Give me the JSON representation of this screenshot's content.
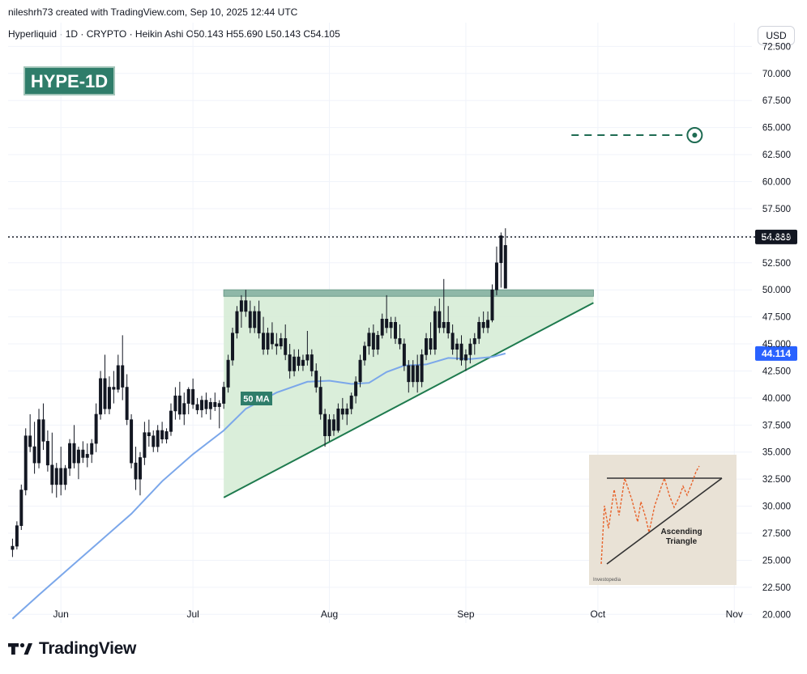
{
  "header": {
    "attribution": "nileshrh73 created with TradingView.com, Sep 10, 2025 12:44 UTC",
    "symbol_info": "Hyperliquid · 1D · CRYPTO · Heikin Ashi O50.143 H55.690 L50.143 C54.105",
    "currency_button": "USD"
  },
  "footer": {
    "brand": "TradingView"
  },
  "colors": {
    "bullish": "#131722",
    "bearish": "#131722",
    "ma_line": "#7ba7ea",
    "triangle_fill": "#d6ecd6",
    "triangle_line": "#1e7a4e",
    "resistance_band": "#8fb8a8",
    "target_line": "#1e6b52",
    "tag_bg": "#2f7d6a",
    "ma_price_badge": "#2962ff"
  },
  "chart_data": {
    "type": "candlestick",
    "title": "HYPE-1D",
    "annotation_ma_label": "50 MA",
    "current_price_label": "54.889",
    "ma_price_label": "44.114",
    "current_price": 54.889,
    "ma_price": 44.114,
    "target_price": 64.3,
    "resistance_zone": [
      49.4,
      50.0
    ],
    "x_ticks": [
      "Jun",
      "Jul",
      "Aug",
      "Sep",
      "Oct",
      "Nov"
    ],
    "y_ticks": [
      "20.000",
      "22.500",
      "25.000",
      "27.500",
      "30.000",
      "32.500",
      "35.000",
      "37.500",
      "40.000",
      "42.500",
      "45.000",
      "47.500",
      "50.000",
      "52.500",
      "55.000",
      "57.500",
      "60.000",
      "62.500",
      "65.000",
      "67.500",
      "70.000",
      "72.500"
    ],
    "ylim": [
      19.2,
      73.2
    ],
    "x_range": [
      "2025-05-20",
      "2025-11-05"
    ],
    "candles": [
      {
        "date": "2025-05-21",
        "o": 26.0,
        "h": 27.0,
        "l": 25.3,
        "c": 26.3
      },
      {
        "date": "2025-05-22",
        "o": 26.3,
        "h": 28.6,
        "l": 26.0,
        "c": 28.2
      },
      {
        "date": "2025-05-23",
        "o": 28.2,
        "h": 32.0,
        "l": 27.8,
        "c": 31.5
      },
      {
        "date": "2025-05-24",
        "o": 31.5,
        "h": 37.2,
        "l": 31.0,
        "c": 36.5
      },
      {
        "date": "2025-05-25",
        "o": 36.5,
        "h": 38.5,
        "l": 35.0,
        "c": 35.5
      },
      {
        "date": "2025-05-26",
        "o": 35.5,
        "h": 37.8,
        "l": 33.0,
        "c": 34.0
      },
      {
        "date": "2025-05-27",
        "o": 34.0,
        "h": 39.0,
        "l": 33.5,
        "c": 38.0
      },
      {
        "date": "2025-05-28",
        "o": 38.0,
        "h": 39.5,
        "l": 35.2,
        "c": 36.0
      },
      {
        "date": "2025-05-29",
        "o": 36.0,
        "h": 37.0,
        "l": 33.2,
        "c": 33.8
      },
      {
        "date": "2025-05-30",
        "o": 33.8,
        "h": 36.8,
        "l": 31.2,
        "c": 32.0
      },
      {
        "date": "2025-05-31",
        "o": 32.0,
        "h": 34.0,
        "l": 30.8,
        "c": 33.5
      },
      {
        "date": "2025-06-01",
        "o": 33.5,
        "h": 35.5,
        "l": 31.0,
        "c": 32.0
      },
      {
        "date": "2025-06-02",
        "o": 32.0,
        "h": 33.8,
        "l": 31.5,
        "c": 33.5
      },
      {
        "date": "2025-06-03",
        "o": 33.5,
        "h": 36.2,
        "l": 32.8,
        "c": 35.8
      },
      {
        "date": "2025-06-04",
        "o": 35.8,
        "h": 37.5,
        "l": 33.5,
        "c": 34.0
      },
      {
        "date": "2025-06-05",
        "o": 34.0,
        "h": 35.5,
        "l": 32.5,
        "c": 35.2
      },
      {
        "date": "2025-06-06",
        "o": 35.2,
        "h": 36.0,
        "l": 34.0,
        "c": 34.5
      },
      {
        "date": "2025-06-07",
        "o": 34.5,
        "h": 35.8,
        "l": 33.6,
        "c": 34.8
      },
      {
        "date": "2025-06-08",
        "o": 34.8,
        "h": 36.2,
        "l": 34.0,
        "c": 35.8
      },
      {
        "date": "2025-06-09",
        "o": 35.8,
        "h": 39.5,
        "l": 35.0,
        "c": 38.5
      },
      {
        "date": "2025-06-10",
        "o": 38.5,
        "h": 42.5,
        "l": 38.0,
        "c": 41.8
      },
      {
        "date": "2025-06-11",
        "o": 41.8,
        "h": 44.0,
        "l": 38.5,
        "c": 39.0
      },
      {
        "date": "2025-06-12",
        "o": 39.0,
        "h": 42.0,
        "l": 38.5,
        "c": 41.0
      },
      {
        "date": "2025-06-13",
        "o": 41.0,
        "h": 42.5,
        "l": 39.5,
        "c": 40.8
      },
      {
        "date": "2025-06-14",
        "o": 40.8,
        "h": 44.0,
        "l": 40.5,
        "c": 43.0
      },
      {
        "date": "2025-06-15",
        "o": 43.0,
        "h": 45.8,
        "l": 39.8,
        "c": 41.0
      },
      {
        "date": "2025-06-16",
        "o": 41.0,
        "h": 42.2,
        "l": 37.5,
        "c": 38.0
      },
      {
        "date": "2025-06-17",
        "o": 38.0,
        "h": 38.5,
        "l": 33.5,
        "c": 34.0
      },
      {
        "date": "2025-06-18",
        "o": 34.0,
        "h": 35.5,
        "l": 31.5,
        "c": 32.5
      },
      {
        "date": "2025-06-19",
        "o": 32.5,
        "h": 35.0,
        "l": 31.0,
        "c": 34.5
      },
      {
        "date": "2025-06-20",
        "o": 34.5,
        "h": 37.8,
        "l": 33.8,
        "c": 36.8
      },
      {
        "date": "2025-06-21",
        "o": 36.8,
        "h": 38.0,
        "l": 35.5,
        "c": 36.5
      },
      {
        "date": "2025-06-22",
        "o": 36.5,
        "h": 37.0,
        "l": 35.0,
        "c": 35.5
      },
      {
        "date": "2025-06-23",
        "o": 35.5,
        "h": 37.5,
        "l": 35.0,
        "c": 37.0
      },
      {
        "date": "2025-06-24",
        "o": 37.0,
        "h": 37.8,
        "l": 35.8,
        "c": 36.2
      },
      {
        "date": "2025-06-25",
        "o": 36.2,
        "h": 37.2,
        "l": 35.8,
        "c": 36.9
      },
      {
        "date": "2025-06-26",
        "o": 36.9,
        "h": 39.5,
        "l": 36.5,
        "c": 38.8
      },
      {
        "date": "2025-06-27",
        "o": 38.8,
        "h": 41.0,
        "l": 38.0,
        "c": 40.2
      },
      {
        "date": "2025-06-28",
        "o": 40.2,
        "h": 41.5,
        "l": 38.0,
        "c": 38.5
      },
      {
        "date": "2025-06-29",
        "o": 38.5,
        "h": 40.5,
        "l": 37.5,
        "c": 39.5
      },
      {
        "date": "2025-06-30",
        "o": 39.5,
        "h": 41.0,
        "l": 38.5,
        "c": 40.8
      },
      {
        "date": "2025-07-01",
        "o": 40.8,
        "h": 41.8,
        "l": 39.0,
        "c": 39.4
      },
      {
        "date": "2025-07-02",
        "o": 39.4,
        "h": 40.0,
        "l": 38.5,
        "c": 38.9
      },
      {
        "date": "2025-07-03",
        "o": 38.9,
        "h": 40.2,
        "l": 38.2,
        "c": 39.8
      },
      {
        "date": "2025-07-04",
        "o": 39.8,
        "h": 40.5,
        "l": 38.5,
        "c": 39.0
      },
      {
        "date": "2025-07-05",
        "o": 39.0,
        "h": 40.0,
        "l": 38.0,
        "c": 39.6
      },
      {
        "date": "2025-07-06",
        "o": 39.6,
        "h": 40.5,
        "l": 38.8,
        "c": 39.2
      },
      {
        "date": "2025-07-07",
        "o": 39.2,
        "h": 39.8,
        "l": 37.2,
        "c": 39.5
      },
      {
        "date": "2025-07-08",
        "o": 39.5,
        "h": 41.5,
        "l": 39.0,
        "c": 41.0
      },
      {
        "date": "2025-07-09",
        "o": 41.0,
        "h": 44.0,
        "l": 40.5,
        "c": 43.5
      },
      {
        "date": "2025-07-10",
        "o": 43.5,
        "h": 46.5,
        "l": 43.0,
        "c": 46.0
      },
      {
        "date": "2025-07-11",
        "o": 46.0,
        "h": 48.5,
        "l": 45.5,
        "c": 48.0
      },
      {
        "date": "2025-07-12",
        "o": 48.0,
        "h": 49.5,
        "l": 46.5,
        "c": 49.0
      },
      {
        "date": "2025-07-13",
        "o": 49.0,
        "h": 50.0,
        "l": 47.5,
        "c": 48.0
      },
      {
        "date": "2025-07-14",
        "o": 48.0,
        "h": 49.0,
        "l": 46.0,
        "c": 46.5
      },
      {
        "date": "2025-07-15",
        "o": 46.5,
        "h": 48.5,
        "l": 46.0,
        "c": 48.0
      },
      {
        "date": "2025-07-16",
        "o": 48.0,
        "h": 49.0,
        "l": 45.5,
        "c": 46.0
      },
      {
        "date": "2025-07-17",
        "o": 46.0,
        "h": 47.5,
        "l": 44.0,
        "c": 44.5
      },
      {
        "date": "2025-07-18",
        "o": 44.5,
        "h": 46.5,
        "l": 44.0,
        "c": 46.0
      },
      {
        "date": "2025-07-19",
        "o": 46.0,
        "h": 47.0,
        "l": 44.5,
        "c": 45.0
      },
      {
        "date": "2025-07-20",
        "o": 45.0,
        "h": 46.0,
        "l": 44.0,
        "c": 44.8
      },
      {
        "date": "2025-07-21",
        "o": 44.8,
        "h": 46.0,
        "l": 44.5,
        "c": 45.5
      },
      {
        "date": "2025-07-22",
        "o": 45.5,
        "h": 46.8,
        "l": 43.5,
        "c": 44.0
      },
      {
        "date": "2025-07-23",
        "o": 44.0,
        "h": 45.0,
        "l": 41.8,
        "c": 42.5
      },
      {
        "date": "2025-07-24",
        "o": 42.5,
        "h": 44.5,
        "l": 42.0,
        "c": 43.8
      },
      {
        "date": "2025-07-25",
        "o": 43.8,
        "h": 44.5,
        "l": 42.5,
        "c": 43.0
      },
      {
        "date": "2025-07-26",
        "o": 43.0,
        "h": 44.0,
        "l": 42.5,
        "c": 43.5
      },
      {
        "date": "2025-07-27",
        "o": 43.5,
        "h": 46.2,
        "l": 43.0,
        "c": 44.0
      },
      {
        "date": "2025-07-28",
        "o": 44.0,
        "h": 44.5,
        "l": 42.0,
        "c": 42.5
      },
      {
        "date": "2025-07-29",
        "o": 42.5,
        "h": 43.2,
        "l": 40.5,
        "c": 41.0
      },
      {
        "date": "2025-07-30",
        "o": 41.0,
        "h": 42.0,
        "l": 38.0,
        "c": 38.5
      },
      {
        "date": "2025-07-31",
        "o": 38.5,
        "h": 39.0,
        "l": 35.5,
        "c": 36.5
      },
      {
        "date": "2025-08-01",
        "o": 36.5,
        "h": 38.5,
        "l": 36.0,
        "c": 38.0
      },
      {
        "date": "2025-08-02",
        "o": 38.0,
        "h": 38.5,
        "l": 36.5,
        "c": 37.0
      },
      {
        "date": "2025-08-03",
        "o": 37.0,
        "h": 39.5,
        "l": 36.8,
        "c": 39.0
      },
      {
        "date": "2025-08-04",
        "o": 39.0,
        "h": 40.0,
        "l": 38.0,
        "c": 38.5
      },
      {
        "date": "2025-08-05",
        "o": 38.5,
        "h": 39.5,
        "l": 37.5,
        "c": 39.0
      },
      {
        "date": "2025-08-06",
        "o": 39.0,
        "h": 40.5,
        "l": 38.5,
        "c": 40.2
      },
      {
        "date": "2025-08-07",
        "o": 40.2,
        "h": 42.0,
        "l": 39.5,
        "c": 41.5
      },
      {
        "date": "2025-08-08",
        "o": 41.5,
        "h": 44.0,
        "l": 41.0,
        "c": 43.5
      },
      {
        "date": "2025-08-09",
        "o": 43.5,
        "h": 45.2,
        "l": 43.0,
        "c": 44.8
      },
      {
        "date": "2025-08-10",
        "o": 44.8,
        "h": 46.5,
        "l": 44.0,
        "c": 46.0
      },
      {
        "date": "2025-08-11",
        "o": 46.0,
        "h": 46.8,
        "l": 43.8,
        "c": 44.5
      },
      {
        "date": "2025-08-12",
        "o": 44.5,
        "h": 46.2,
        "l": 44.0,
        "c": 45.8
      },
      {
        "date": "2025-08-13",
        "o": 45.8,
        "h": 47.8,
        "l": 45.5,
        "c": 47.3
      },
      {
        "date": "2025-08-14",
        "o": 47.3,
        "h": 49.5,
        "l": 46.0,
        "c": 46.5
      },
      {
        "date": "2025-08-15",
        "o": 46.5,
        "h": 47.5,
        "l": 45.5,
        "c": 47.0
      },
      {
        "date": "2025-08-16",
        "o": 47.0,
        "h": 47.5,
        "l": 45.0,
        "c": 45.5
      },
      {
        "date": "2025-08-17",
        "o": 45.5,
        "h": 46.8,
        "l": 44.5,
        "c": 45.0
      },
      {
        "date": "2025-08-18",
        "o": 45.0,
        "h": 45.5,
        "l": 42.5,
        "c": 43.0
      },
      {
        "date": "2025-08-19",
        "o": 43.0,
        "h": 43.5,
        "l": 40.5,
        "c": 41.5
      },
      {
        "date": "2025-08-20",
        "o": 41.5,
        "h": 43.5,
        "l": 41.0,
        "c": 43.0
      },
      {
        "date": "2025-08-21",
        "o": 43.0,
        "h": 44.0,
        "l": 40.5,
        "c": 41.5
      },
      {
        "date": "2025-08-22",
        "o": 41.5,
        "h": 44.5,
        "l": 41.0,
        "c": 44.0
      },
      {
        "date": "2025-08-23",
        "o": 44.0,
        "h": 46.0,
        "l": 43.5,
        "c": 45.5
      },
      {
        "date": "2025-08-24",
        "o": 45.5,
        "h": 47.0,
        "l": 44.0,
        "c": 44.5
      },
      {
        "date": "2025-08-25",
        "o": 44.5,
        "h": 48.5,
        "l": 44.0,
        "c": 48.0
      },
      {
        "date": "2025-08-26",
        "o": 48.0,
        "h": 49.2,
        "l": 46.0,
        "c": 46.5
      },
      {
        "date": "2025-08-27",
        "o": 46.5,
        "h": 51.0,
        "l": 46.0,
        "c": 47.0
      },
      {
        "date": "2025-08-28",
        "o": 47.0,
        "h": 48.5,
        "l": 45.5,
        "c": 46.0
      },
      {
        "date": "2025-08-29",
        "o": 46.0,
        "h": 46.8,
        "l": 44.0,
        "c": 44.5
      },
      {
        "date": "2025-08-30",
        "o": 44.5,
        "h": 45.5,
        "l": 43.5,
        "c": 45.0
      },
      {
        "date": "2025-08-31",
        "o": 45.0,
        "h": 45.8,
        "l": 43.0,
        "c": 43.5
      },
      {
        "date": "2025-09-01",
        "o": 43.5,
        "h": 44.5,
        "l": 42.5,
        "c": 44.0
      },
      {
        "date": "2025-09-02",
        "o": 44.0,
        "h": 45.5,
        "l": 43.2,
        "c": 45.0
      },
      {
        "date": "2025-09-03",
        "o": 45.0,
        "h": 46.0,
        "l": 44.0,
        "c": 45.5
      },
      {
        "date": "2025-09-04",
        "o": 45.5,
        "h": 47.5,
        "l": 45.0,
        "c": 47.0
      },
      {
        "date": "2025-09-05",
        "o": 47.0,
        "h": 48.0,
        "l": 46.0,
        "c": 46.5
      },
      {
        "date": "2025-09-06",
        "o": 46.5,
        "h": 48.0,
        "l": 46.0,
        "c": 47.2
      },
      {
        "date": "2025-09-07",
        "o": 47.2,
        "h": 50.5,
        "l": 47.0,
        "c": 50.0
      },
      {
        "date": "2025-09-08",
        "o": 50.0,
        "h": 54.0,
        "l": 49.5,
        "c": 52.5
      },
      {
        "date": "2025-09-09",
        "o": 52.5,
        "h": 55.3,
        "l": 50.2,
        "c": 55.0
      },
      {
        "date": "2025-09-10",
        "o": 50.143,
        "h": 55.69,
        "l": 50.143,
        "c": 54.105
      }
    ],
    "ma_50": [
      {
        "date": "2025-05-21",
        "v": 19.6
      },
      {
        "date": "2025-05-27",
        "v": 21.8
      },
      {
        "date": "2025-06-03",
        "v": 24.3
      },
      {
        "date": "2025-06-10",
        "v": 26.8
      },
      {
        "date": "2025-06-17",
        "v": 29.3
      },
      {
        "date": "2025-06-24",
        "v": 32.3
      },
      {
        "date": "2025-07-01",
        "v": 34.8
      },
      {
        "date": "2025-07-08",
        "v": 37.0
      },
      {
        "date": "2025-07-13",
        "v": 39.0
      },
      {
        "date": "2025-07-20",
        "v": 40.5
      },
      {
        "date": "2025-07-27",
        "v": 41.5
      },
      {
        "date": "2025-08-01",
        "v": 41.6
      },
      {
        "date": "2025-08-06",
        "v": 41.3
      },
      {
        "date": "2025-08-10",
        "v": 41.4
      },
      {
        "date": "2025-08-14",
        "v": 42.4
      },
      {
        "date": "2025-08-18",
        "v": 43.0
      },
      {
        "date": "2025-08-23",
        "v": 43.1
      },
      {
        "date": "2025-08-28",
        "v": 43.7
      },
      {
        "date": "2025-09-02",
        "v": 43.6
      },
      {
        "date": "2025-09-07",
        "v": 43.8
      },
      {
        "date": "2025-09-10",
        "v": 44.114
      }
    ],
    "triangle": {
      "start_date": "2025-07-08",
      "end_date": "2025-09-30",
      "top": 50.0,
      "bottom_start": 30.8,
      "bottom_end": 48.8
    },
    "target_line": {
      "start_date": "2025-09-25",
      "end_date": "2025-10-23"
    },
    "inset": {
      "label": "Ascending Triangle",
      "credit": "Investopedia"
    }
  }
}
